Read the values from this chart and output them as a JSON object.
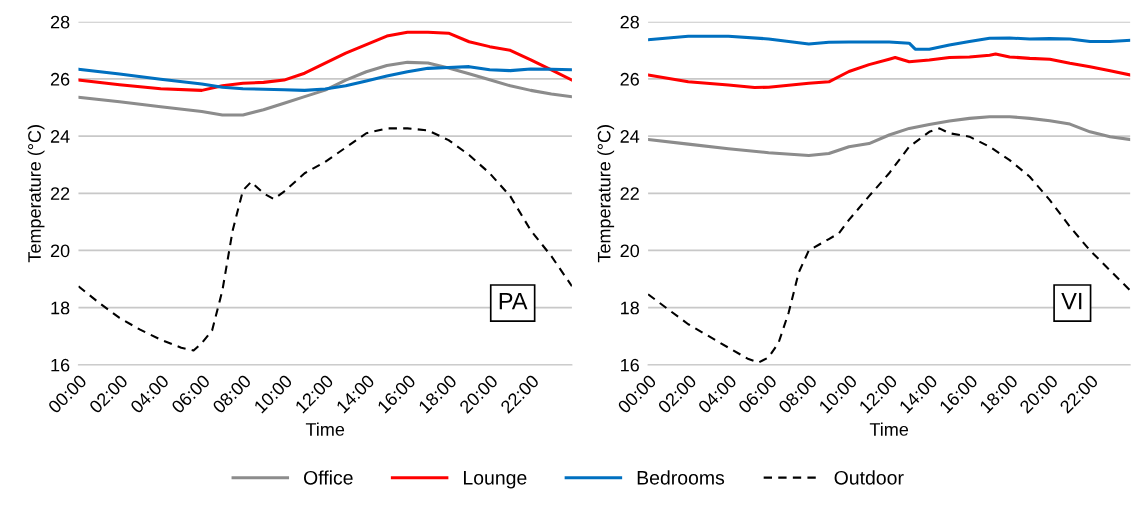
{
  "chart_data": [
    {
      "type": "line",
      "xlabel": "Time",
      "ylabel": "Temperature (°C)",
      "annotations": [
        "PA"
      ],
      "xlim": [
        0,
        24
      ],
      "ylim": [
        16,
        28
      ],
      "xticks": [
        {
          "value": 0,
          "label": "00:00"
        },
        {
          "value": 2,
          "label": "02:00"
        },
        {
          "value": 4,
          "label": "04:00"
        },
        {
          "value": 6,
          "label": "06:00"
        },
        {
          "value": 8,
          "label": "08:00"
        },
        {
          "value": 10,
          "label": "10:00"
        },
        {
          "value": 12,
          "label": "12:00"
        },
        {
          "value": 14,
          "label": "14:00"
        },
        {
          "value": 16,
          "label": "16:00"
        },
        {
          "value": 18,
          "label": "18:00"
        },
        {
          "value": 20,
          "label": "20:00"
        },
        {
          "value": 22,
          "label": "22:00"
        }
      ],
      "yticks": [
        16,
        18,
        20,
        22,
        24,
        26,
        28
      ],
      "grid": "y",
      "legend": "bottom",
      "marker": "none",
      "series": [
        {
          "name": "Office",
          "color": "#8c8c8c",
          "line_style": "solid",
          "x": [
            0,
            2,
            4,
            6,
            7,
            8,
            9,
            10,
            11,
            12,
            13,
            14,
            15,
            16,
            17,
            18,
            19,
            20,
            21,
            22,
            23,
            24
          ],
          "values": [
            25.36,
            25.2,
            25.03,
            24.86,
            24.74,
            24.74,
            24.92,
            25.15,
            25.38,
            25.61,
            25.96,
            26.25,
            26.47,
            26.58,
            26.56,
            26.38,
            26.18,
            25.97,
            25.76,
            25.6,
            25.47,
            25.38
          ]
        },
        {
          "name": "Lounge",
          "color": "#ff0000",
          "line_style": "solid",
          "x": [
            0,
            2,
            4,
            6,
            7,
            8,
            9,
            10,
            11,
            12,
            13,
            14,
            15,
            16,
            17,
            18,
            19,
            20,
            21,
            22,
            23,
            24
          ],
          "values": [
            25.96,
            25.8,
            25.66,
            25.6,
            25.76,
            25.85,
            25.88,
            25.96,
            26.2,
            26.55,
            26.9,
            27.2,
            27.5,
            27.63,
            27.63,
            27.6,
            27.3,
            27.13,
            27.0,
            26.67,
            26.32,
            25.96
          ]
        },
        {
          "name": "Bedrooms",
          "color": "#0070c0",
          "line_style": "solid",
          "x": [
            0,
            2,
            4,
            6,
            7,
            8,
            10,
            11,
            12,
            13,
            14,
            15,
            16,
            17,
            18,
            19,
            20,
            21,
            22,
            23,
            24
          ],
          "values": [
            26.34,
            26.17,
            25.99,
            25.82,
            25.71,
            25.66,
            25.62,
            25.6,
            25.65,
            25.76,
            25.93,
            26.1,
            26.25,
            26.37,
            26.4,
            26.43,
            26.32,
            26.29,
            26.35,
            26.34,
            26.32
          ]
        },
        {
          "name": "Outdoor",
          "color": "#000000",
          "line_style": "dashed",
          "x": [
            0,
            1,
            2,
            3,
            4,
            5,
            5.6,
            6,
            6.5,
            7,
            7.5,
            8,
            8.4,
            9,
            9.5,
            10,
            11,
            12,
            13,
            14,
            15,
            16,
            17,
            18,
            19,
            20,
            21,
            22,
            23,
            24
          ],
          "values": [
            18.75,
            18.17,
            17.64,
            17.23,
            16.88,
            16.6,
            16.5,
            16.76,
            17.2,
            18.6,
            20.7,
            22.1,
            22.4,
            22.0,
            21.8,
            22.06,
            22.7,
            23.1,
            23.6,
            24.1,
            24.27,
            24.27,
            24.2,
            23.86,
            23.34,
            22.7,
            21.9,
            20.7,
            19.8,
            18.75
          ]
        }
      ]
    },
    {
      "type": "line",
      "xlabel": "Time",
      "ylabel": "Temperature (°C)",
      "annotations": [
        "VI"
      ],
      "xlim": [
        0,
        24
      ],
      "ylim": [
        16,
        28
      ],
      "xticks": [
        {
          "value": 0,
          "label": "00:00"
        },
        {
          "value": 2,
          "label": "02:00"
        },
        {
          "value": 4,
          "label": "04:00"
        },
        {
          "value": 6,
          "label": "06:00"
        },
        {
          "value": 8,
          "label": "08:00"
        },
        {
          "value": 10,
          "label": "10:00"
        },
        {
          "value": 12,
          "label": "12:00"
        },
        {
          "value": 14,
          "label": "14:00"
        },
        {
          "value": 16,
          "label": "16:00"
        },
        {
          "value": 18,
          "label": "18:00"
        },
        {
          "value": 20,
          "label": "20:00"
        },
        {
          "value": 22,
          "label": "22:00"
        }
      ],
      "yticks": [
        16,
        18,
        20,
        22,
        24,
        26,
        28
      ],
      "grid": "y",
      "marker": "none",
      "series": [
        {
          "color": "#8c8c8c",
          "line_style": "solid",
          "x": [
            0,
            2,
            4,
            6,
            8,
            9,
            10,
            11,
            12,
            13,
            14,
            15,
            16,
            17,
            18,
            19,
            20,
            21,
            22,
            23,
            24
          ],
          "values": [
            23.88,
            23.72,
            23.56,
            23.42,
            23.32,
            23.39,
            23.63,
            23.74,
            24.04,
            24.27,
            24.41,
            24.53,
            24.62,
            24.68,
            24.68,
            24.62,
            24.54,
            24.42,
            24.15,
            23.98,
            23.88
          ]
        },
        {
          "color": "#ff0000",
          "line_style": "solid",
          "x": [
            0,
            2,
            4,
            5.3,
            6,
            8,
            9,
            10,
            11,
            12,
            12.3,
            13,
            14,
            15,
            16,
            17,
            17.3,
            18,
            19,
            20,
            21,
            22,
            23,
            24
          ],
          "values": [
            26.14,
            25.9,
            25.79,
            25.7,
            25.71,
            25.85,
            25.9,
            26.26,
            26.5,
            26.69,
            26.75,
            26.6,
            26.66,
            26.75,
            26.77,
            26.83,
            26.87,
            26.77,
            26.72,
            26.69,
            26.55,
            26.43,
            26.29,
            26.14
          ]
        },
        {
          "color": "#0070c0",
          "line_style": "solid",
          "x": [
            0,
            2,
            4,
            6,
            8,
            9,
            10,
            12,
            13,
            13.3,
            14,
            15,
            16,
            17,
            18,
            19,
            20,
            21,
            22,
            23,
            24
          ],
          "values": [
            27.37,
            27.49,
            27.49,
            27.4,
            27.22,
            27.28,
            27.29,
            27.29,
            27.25,
            27.04,
            27.04,
            27.19,
            27.31,
            27.42,
            27.43,
            27.4,
            27.41,
            27.4,
            27.31,
            27.31,
            27.35
          ]
        },
        {
          "color": "#000000",
          "line_style": "dashed",
          "x": [
            0,
            1,
            2,
            3,
            4,
            5,
            5.5,
            6,
            6.5,
            7,
            7.5,
            8,
            8.5,
            9,
            9.5,
            10,
            11,
            12,
            13,
            14,
            14.5,
            15,
            16,
            17,
            18,
            19,
            20,
            21,
            22,
            23,
            24
          ],
          "values": [
            18.47,
            17.94,
            17.42,
            17.01,
            16.6,
            16.2,
            16.08,
            16.26,
            16.78,
            17.83,
            19.23,
            20.0,
            20.2,
            20.4,
            20.6,
            21.07,
            21.9,
            22.7,
            23.63,
            24.15,
            24.27,
            24.1,
            23.98,
            23.63,
            23.16,
            22.58,
            21.76,
            20.83,
            20.0,
            19.3,
            18.6
          ]
        }
      ]
    }
  ]
}
